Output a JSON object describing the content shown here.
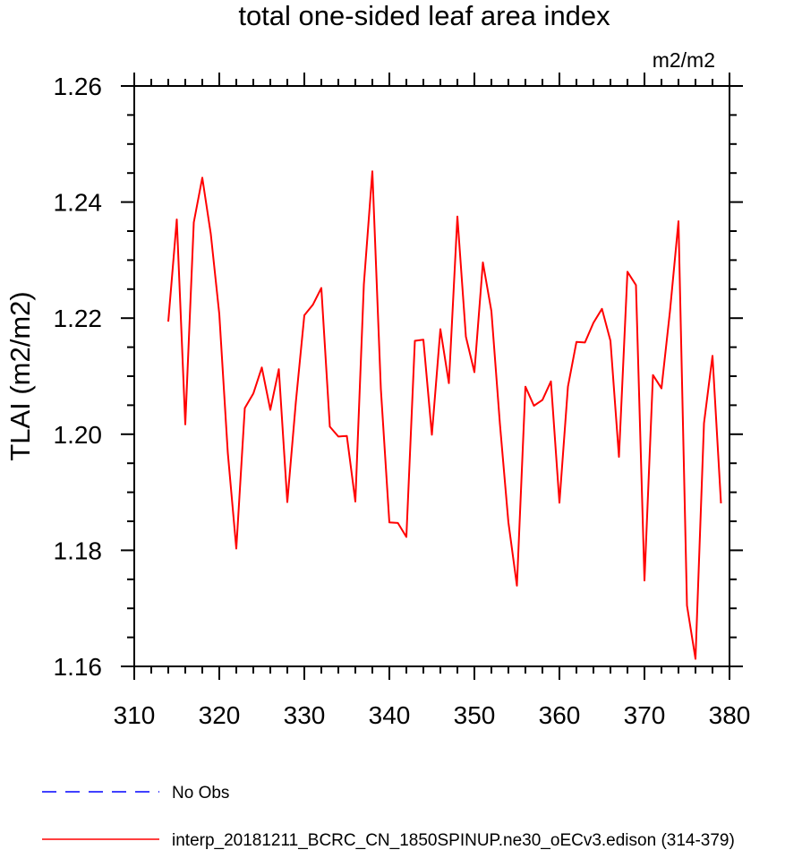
{
  "chart_data": {
    "type": "line",
    "title": "total one-sided leaf area index",
    "units": "m2/m2",
    "ylabel": "TLAI  (m2/m2)",
    "xlabel": "",
    "xlim": [
      310,
      380
    ],
    "ylim": [
      1.16,
      1.26
    ],
    "xticks": [
      "310",
      "320",
      "330",
      "340",
      "350",
      "360",
      "370",
      "380"
    ],
    "yticks": [
      "1.16",
      "1.18",
      "1.20",
      "1.22",
      "1.24",
      "1.26"
    ],
    "grid": false,
    "legend_position": "bottom-left",
    "series": [
      {
        "name": "No Obs",
        "color": "#0000ff",
        "style": "dashed",
        "x": [],
        "values": []
      },
      {
        "name": "interp_20181211_BCRC_CN_1850SPINUP.ne30_oECv3.edison (314-379)",
        "color": "#ff0000",
        "style": "solid",
        "x": [
          314,
          315,
          316,
          317,
          318,
          319,
          320,
          321,
          322,
          323,
          324,
          325,
          326,
          327,
          328,
          329,
          330,
          331,
          332,
          333,
          334,
          335,
          336,
          337,
          338,
          339,
          340,
          341,
          342,
          343,
          344,
          345,
          346,
          347,
          348,
          349,
          350,
          351,
          352,
          353,
          354,
          355,
          356,
          357,
          358,
          359,
          360,
          361,
          362,
          363,
          364,
          365,
          366,
          367,
          368,
          369,
          370,
          371,
          372,
          373,
          374,
          375,
          376,
          377,
          378,
          379
        ],
        "values": [
          1.2194,
          1.237,
          1.2017,
          1.2365,
          1.2442,
          1.2345,
          1.2207,
          1.1968,
          1.1803,
          1.2045,
          1.207,
          1.2115,
          1.2042,
          1.2112,
          1.1883,
          1.2055,
          1.2205,
          1.2223,
          1.2252,
          1.2013,
          1.1996,
          1.1997,
          1.1884,
          1.2258,
          1.2453,
          1.2078,
          1.1848,
          1.1847,
          1.1823,
          1.2161,
          1.2163,
          1.1999,
          1.2181,
          1.2088,
          1.2375,
          1.2168,
          1.2107,
          1.2296,
          1.2212,
          1.2018,
          1.1848,
          1.1739,
          1.2082,
          1.2049,
          1.2059,
          1.2091,
          1.1882,
          1.2082,
          1.2159,
          1.2158,
          1.2192,
          1.2216,
          1.2161,
          1.1961,
          1.228,
          1.2257,
          1.1748,
          1.2102,
          1.2079,
          1.2212,
          1.2367,
          1.1705,
          1.1613,
          1.2019,
          1.2135,
          1.1881
        ]
      }
    ]
  }
}
